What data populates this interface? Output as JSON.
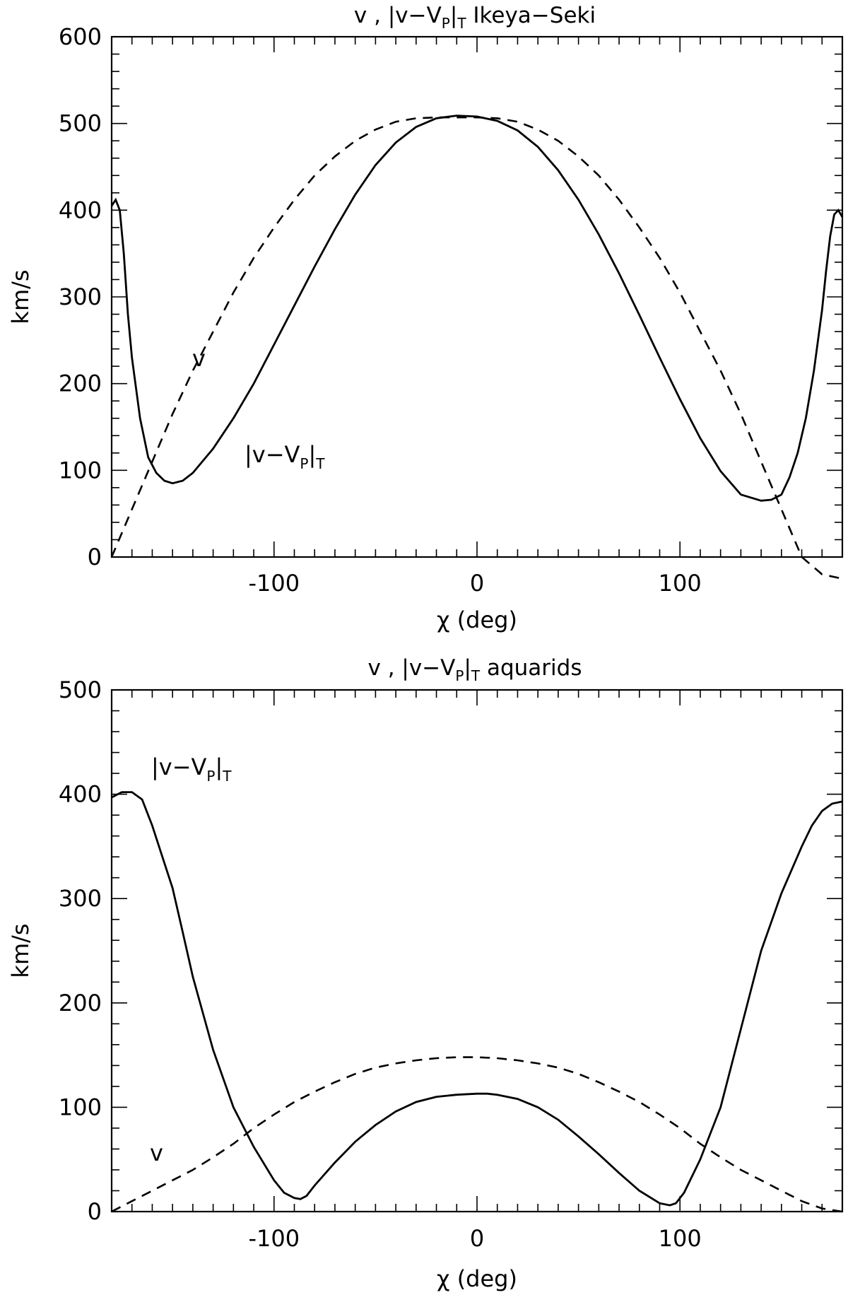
{
  "chart_data": [
    {
      "type": "line",
      "title": {
        "prefix": "v , |v−V",
        "sub1": "P",
        "mid": "|",
        "sub2": "T",
        "suffix": " Ikeya−Seki"
      },
      "xlabel": "χ (deg)",
      "ylabel": "km/s",
      "xlim": [
        -180,
        180
      ],
      "ylim": [
        0,
        600
      ],
      "xticks": [
        -100,
        0,
        100
      ],
      "yticks": [
        0,
        100,
        200,
        300,
        400,
        500,
        600
      ],
      "grid": false,
      "series": [
        {
          "style": "solid",
          "x": [
            -180,
            -178,
            -176,
            -174,
            -172,
            -170,
            -166,
            -162,
            -158,
            -154,
            -150,
            -145,
            -140,
            -130,
            -120,
            -110,
            -100,
            -90,
            -80,
            -70,
            -60,
            -50,
            -40,
            -30,
            -20,
            -10,
            0,
            10,
            20,
            30,
            40,
            50,
            60,
            70,
            80,
            90,
            100,
            110,
            120,
            130,
            140,
            145,
            150,
            154,
            158,
            162,
            166,
            170,
            172,
            174,
            176,
            178,
            180
          ],
          "y": [
            405,
            412,
            400,
            350,
            280,
            230,
            160,
            115,
            97,
            88,
            85,
            88,
            97,
            125,
            160,
            200,
            245,
            290,
            335,
            378,
            418,
            452,
            478,
            496,
            506,
            509,
            508,
            503,
            492,
            473,
            446,
            412,
            372,
            327,
            279,
            230,
            182,
            137,
            99,
            72,
            65,
            66,
            72,
            92,
            120,
            160,
            215,
            285,
            330,
            370,
            395,
            400,
            392
          ]
        },
        {
          "style": "dashed",
          "x": [
            -180,
            -170,
            -160,
            -150,
            -140,
            -130,
            -120,
            -110,
            -100,
            -90,
            -80,
            -70,
            -60,
            -50,
            -40,
            -30,
            -20,
            -10,
            0,
            10,
            20,
            30,
            40,
            50,
            60,
            70,
            80,
            90,
            100,
            110,
            120,
            130,
            140,
            150,
            160,
            170,
            180
          ],
          "y": [
            0,
            55,
            110,
            165,
            215,
            260,
            305,
            345,
            380,
            412,
            440,
            462,
            480,
            493,
            502,
            506,
            507,
            507,
            507,
            506,
            502,
            493,
            480,
            462,
            440,
            412,
            380,
            345,
            305,
            260,
            215,
            165,
            110,
            55,
            0,
            -20,
            -25
          ]
        }
      ],
      "annotations": {
        "v": "v",
        "diff": {
          "prefix": "|v−V",
          "sub1": "P",
          "mid": "|",
          "sub2": "T"
        }
      }
    },
    {
      "type": "line",
      "title": {
        "prefix": "v , |v−V",
        "sub1": "P",
        "mid": "|",
        "sub2": "T",
        "suffix": " aquarids"
      },
      "xlabel": "χ (deg)",
      "ylabel": "km/s",
      "xlim": [
        -180,
        180
      ],
      "ylim": [
        0,
        500
      ],
      "xticks": [
        -100,
        0,
        100
      ],
      "yticks": [
        0,
        100,
        200,
        300,
        400,
        500
      ],
      "grid": false,
      "series": [
        {
          "style": "solid",
          "x": [
            -180,
            -175,
            -170,
            -165,
            -160,
            -155,
            -150,
            -145,
            -140,
            -130,
            -120,
            -110,
            -100,
            -95,
            -90,
            -87,
            -84,
            -80,
            -70,
            -60,
            -50,
            -40,
            -30,
            -20,
            -10,
            0,
            5,
            10,
            20,
            30,
            40,
            50,
            60,
            70,
            80,
            90,
            95,
            98,
            102,
            110,
            120,
            130,
            140,
            150,
            160,
            165,
            170,
            175,
            180
          ],
          "y": [
            397,
            402,
            402,
            395,
            370,
            340,
            310,
            268,
            225,
            155,
            100,
            62,
            30,
            18,
            13,
            12,
            15,
            25,
            47,
            67,
            83,
            96,
            105,
            110,
            112,
            113,
            113,
            112,
            108,
            100,
            88,
            72,
            55,
            37,
            20,
            8,
            6,
            8,
            18,
            50,
            100,
            175,
            250,
            305,
            350,
            370,
            384,
            391,
            393
          ]
        },
        {
          "style": "dashed",
          "x": [
            -180,
            -170,
            -160,
            -150,
            -140,
            -130,
            -120,
            -110,
            -100,
            -90,
            -80,
            -70,
            -60,
            -50,
            -40,
            -30,
            -20,
            -10,
            0,
            10,
            20,
            30,
            40,
            50,
            60,
            70,
            80,
            90,
            100,
            110,
            120,
            130,
            140,
            150,
            160,
            170,
            180
          ],
          "y": [
            0,
            10,
            20,
            30,
            40,
            52,
            65,
            80,
            93,
            105,
            115,
            124,
            132,
            138,
            142,
            145,
            147,
            148,
            148,
            147,
            145,
            142,
            138,
            132,
            124,
            115,
            105,
            93,
            80,
            65,
            52,
            40,
            30,
            20,
            10,
            3,
            0
          ]
        }
      ],
      "annotations": {
        "v": "v",
        "diff": {
          "prefix": "|v−V",
          "sub1": "P",
          "mid": "|",
          "sub2": "T"
        }
      }
    }
  ]
}
